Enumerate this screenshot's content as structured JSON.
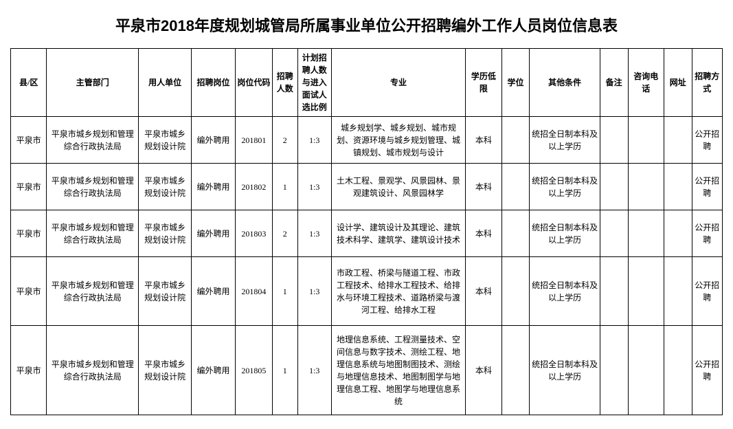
{
  "title": "平泉市2018年度规划城管局所属事业单位公开招聘编外工作人员岗位信息表",
  "columns": [
    "县/区",
    "主管部门",
    "用人单位",
    "招聘岗位",
    "岗位代码",
    "招聘人数",
    "计划招聘人数与进入面试人选比例",
    "专业",
    "学历低限",
    "学位",
    "其他条件",
    "备注",
    "咨询电话",
    "网址",
    "招聘方式"
  ],
  "rows": [
    {
      "county": "平泉市",
      "dept": "平泉市城乡规划和管理综合行政执法局",
      "employer": "平泉市城乡规划设计院",
      "position": "编外聘用",
      "code": "201801",
      "count": "2",
      "ratio": "1:3",
      "major": "城乡规划学、城乡规划、城市规划、资源环境与城乡规划管理、城镇规划、城市规划与设计",
      "edu": "本科",
      "degree": "",
      "other": "统招全日制本科及以上学历",
      "remark": "",
      "phone": "",
      "url": "",
      "method": "公开招聘",
      "rowclass": ""
    },
    {
      "county": "平泉市",
      "dept": "平泉市城乡规划和管理综合行政执法局",
      "employer": "平泉市城乡规划设计院",
      "position": "编外聘用",
      "code": "201802",
      "count": "1",
      "ratio": "1:3",
      "major": "土木工程、景观学、风景园林、景观建筑设计、风景园林学",
      "edu": "本科",
      "degree": "",
      "other": "统招全日制本科及以上学历",
      "remark": "",
      "phone": "",
      "url": "",
      "method": "公开招聘",
      "rowclass": ""
    },
    {
      "county": "平泉市",
      "dept": "平泉市城乡规划和管理综合行政执法局",
      "employer": "平泉市城乡规划设计院",
      "position": "编外聘用",
      "code": "201803",
      "count": "2",
      "ratio": "1:3",
      "major": "设计学、建筑设计及其理论、建筑技术科学、建筑学、建筑设计技术",
      "edu": "本科",
      "degree": "",
      "other": "统招全日制本科及以上学历",
      "remark": "",
      "phone": "",
      "url": "",
      "method": "公开招聘",
      "rowclass": ""
    },
    {
      "county": "平泉市",
      "dept": "平泉市城乡规划和管理综合行政执法局",
      "employer": "平泉市城乡规划设计院",
      "position": "编外聘用",
      "code": "201804",
      "count": "1",
      "ratio": "1:3",
      "major": "市政工程、桥梁与隧道工程、市政工程技术、给排水工程技术、给排水与环境工程技术、道路桥梁与渡河工程、给排水工程",
      "edu": "本科",
      "degree": "",
      "other": "统招全日制本科及以上学历",
      "remark": "",
      "phone": "",
      "url": "",
      "method": "公开招聘",
      "rowclass": "tall"
    },
    {
      "county": "平泉市",
      "dept": "平泉市城乡规划和管理综合行政执法局",
      "employer": "平泉市城乡规划设计院",
      "position": "编外聘用",
      "code": "201805",
      "count": "1",
      "ratio": "1:3",
      "major": "地理信息系统、工程测量技术、空间信息与数字技术、测绘工程、地理信息系统与地图制图技术、测绘与地理信息技术、地图制图学与地理信息工程、地图学与地理信息系统",
      "edu": "本科",
      "degree": "",
      "other": "统招全日制本科及以上学历",
      "remark": "",
      "phone": "",
      "url": "",
      "method": "公开招聘",
      "rowclass": "taller"
    }
  ]
}
